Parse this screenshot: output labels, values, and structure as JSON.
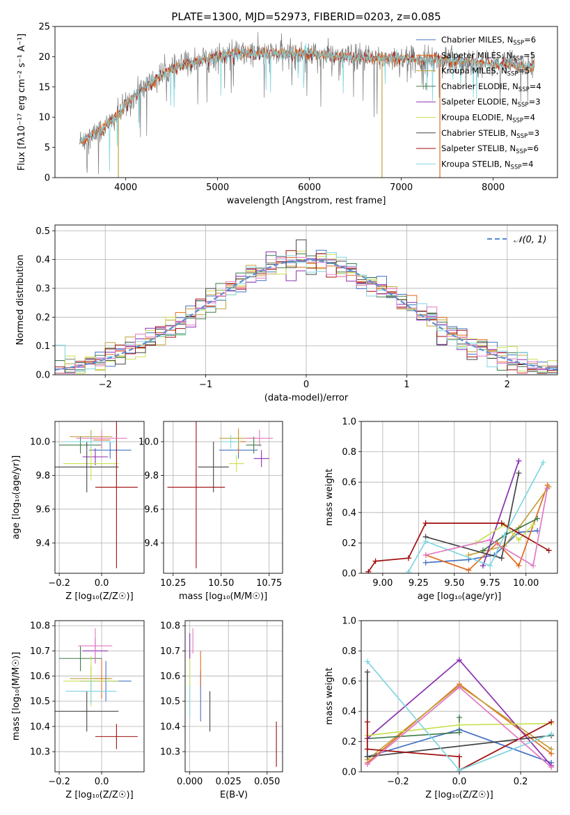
{
  "colors": {
    "Chabrier MILES": "#4472c4",
    "Salpeter MILES": "#e06b1f",
    "Kroupa MILES": "#c1a23a",
    "Chabrier ELODIE": "#3e7a48",
    "Salpeter ELODIE": "#8b2fb0",
    "Kroupa ELODIE": "#c9e053",
    "Chabrier STELIB": "#444444",
    "Salpeter STELIB": "#a00f0f",
    "Kroupa STELIB": "#7fd6e0",
    "extra_pink": "#e377c2",
    "normal": "#5b8fd6"
  },
  "chart_data": [
    {
      "id": "spectrum",
      "type": "line",
      "title": "PLATE=1300, MJD=52973, FIBERID=0203, z=0.085",
      "xlabel": "wavelength [Angstrom, rest frame]",
      "ylabel": "Flux [fλ10⁻¹⁷ erg cm⁻² s⁻¹ A⁻¹]",
      "xlim": [
        3230,
        8700
      ],
      "ylim": [
        0,
        25
      ],
      "xticks": [
        4000,
        5000,
        6000,
        7000,
        8000
      ],
      "yticks": [
        0,
        5,
        10,
        15,
        20,
        25
      ],
      "legend_position": "right",
      "continuum": [
        [
          3500,
          6
        ],
        [
          3700,
          7.5
        ],
        [
          3900,
          10
        ],
        [
          4000,
          12
        ],
        [
          4200,
          15
        ],
        [
          4400,
          17
        ],
        [
          4600,
          18.5
        ],
        [
          4800,
          19.5
        ],
        [
          5000,
          20
        ],
        [
          5200,
          20.5
        ],
        [
          5500,
          20.5
        ],
        [
          5800,
          20.5
        ],
        [
          6000,
          20.5
        ],
        [
          6300,
          20
        ],
        [
          6600,
          19.8
        ],
        [
          7000,
          19.7
        ],
        [
          7300,
          19.6
        ],
        [
          7600,
          19.3
        ],
        [
          8000,
          18.8
        ],
        [
          8450,
          18.4
        ]
      ],
      "dropouts": [
        {
          "x": 3920,
          "y": 0
        },
        {
          "x": 6790,
          "y": 0
        },
        {
          "x": 7420,
          "y": 0
        }
      ],
      "legend": [
        {
          "label": "Chabrier MILES, N",
          "sub": "SSP",
          "value": "=6",
          "series": "Chabrier MILES"
        },
        {
          "label": "Salpeter MILES, N",
          "sub": "SSP",
          "value": "=5",
          "series": "Salpeter MILES"
        },
        {
          "label": "Kroupa MILES, N",
          "sub": "SSP",
          "value": "=5",
          "series": "Kroupa MILES"
        },
        {
          "label": "Chabrier ELODIE, N",
          "sub": "SSP",
          "value": "=4",
          "series": "Chabrier ELODIE"
        },
        {
          "label": "Salpeter ELODIE, N",
          "sub": "SSP",
          "value": "=3",
          "series": "Salpeter ELODIE"
        },
        {
          "label": "Kroupa ELODIE, N",
          "sub": "SSP",
          "value": "=4",
          "series": "Kroupa ELODIE"
        },
        {
          "label": "Chabrier STELIB, N",
          "sub": "SSP",
          "value": "=3",
          "series": "Chabrier STELIB"
        },
        {
          "label": "Salpeter STELIB, N",
          "sub": "SSP",
          "value": "=6",
          "series": "Salpeter STELIB"
        },
        {
          "label": "Kroupa STELIB, N",
          "sub": "SSP",
          "value": "=4",
          "series": "Kroupa STELIB"
        }
      ]
    },
    {
      "id": "residuals",
      "type": "line",
      "xlabel": "(data-model)/error",
      "ylabel": "Normed distribution",
      "xlim": [
        -2.5,
        2.5
      ],
      "ylim": [
        0,
        0.52
      ],
      "xticks": [
        -2,
        -1,
        0,
        1,
        2
      ],
      "yticks": [
        0.0,
        0.1,
        0.2,
        0.3,
        0.4,
        0.5
      ],
      "grid": true,
      "legend": [
        {
          "label": "𝒩(0, 1)",
          "series": "normal"
        }
      ],
      "legend_position": "top-right",
      "bin_width": 0.1,
      "bin_start": -2.5
    },
    {
      "id": "age_vs_Z",
      "type": "scatter",
      "xlabel": "Z [log₁₀(Z/Z☉)]",
      "ylabel": "age  [log₁₀(age/yr)]",
      "xlim": [
        -0.22,
        0.2
      ],
      "ylim": [
        9.22,
        10.12
      ],
      "xticks": [
        -0.2,
        0.0
      ],
      "yticks": [
        9.4,
        9.6,
        9.8,
        10.0
      ],
      "grid": true,
      "points": [
        {
          "series": "Chabrier MILES",
          "x": 0.04,
          "y": 9.95,
          "xerr": 0.1,
          "yerr": 0.05
        },
        {
          "series": "Salpeter MILES",
          "x": 0.0,
          "y": 10.01,
          "xerr": 0.04,
          "yerr": 0.05
        },
        {
          "series": "Kroupa MILES",
          "x": -0.05,
          "y": 10.03,
          "xerr": 0.1,
          "yerr": 0.04
        },
        {
          "series": "Chabrier ELODIE",
          "x": -0.1,
          "y": 9.98,
          "xerr": 0.1,
          "yerr": 0.05
        },
        {
          "series": "Salpeter ELODIE",
          "x": -0.03,
          "y": 9.91,
          "xerr": 0.06,
          "yerr": 0.05
        },
        {
          "series": "Kroupa ELODIE",
          "x": -0.05,
          "y": 9.87,
          "xerr": 0.13,
          "yerr": 0.1
        },
        {
          "series": "Chabrier STELIB",
          "x": -0.07,
          "y": 9.85,
          "xerr": 0.15,
          "yerr": 0.15
        },
        {
          "series": "Salpeter STELIB",
          "x": 0.07,
          "y": 9.73,
          "xerr": 0.1,
          "yerr": 0.48
        },
        {
          "series": "Kroupa STELIB",
          "x": -0.05,
          "y": 10.0,
          "xerr": 0.12,
          "yerr": 0.04
        },
        {
          "series": "extra_pink",
          "x": 0.0,
          "y": 10.02,
          "xerr": 0.12,
          "yerr": 0.05
        }
      ]
    },
    {
      "id": "age_vs_mass",
      "type": "scatter",
      "xlabel": "mass [log₁₀(M/M☉)]",
      "ylabel": "",
      "xlim": [
        10.2,
        10.82
      ],
      "ylim": [
        9.22,
        10.12
      ],
      "xticks": [
        10.25,
        10.5,
        10.75
      ],
      "yticks": [
        9.4,
        9.6,
        9.8,
        10.0
      ],
      "grid": true,
      "points": [
        {
          "series": "Chabrier MILES",
          "x": 10.59,
          "y": 9.95,
          "xerr": 0.1,
          "yerr": 0.05
        },
        {
          "series": "Salpeter MILES",
          "x": 10.59,
          "y": 10.0,
          "xerr": 0.04,
          "yerr": 0.07
        },
        {
          "series": "Kroupa MILES",
          "x": 10.59,
          "y": 10.02,
          "xerr": 0.1,
          "yerr": 0.06
        },
        {
          "series": "Chabrier ELODIE",
          "x": 10.67,
          "y": 9.98,
          "xerr": 0.04,
          "yerr": 0.05
        },
        {
          "series": "Salpeter ELODIE",
          "x": 10.71,
          "y": 9.9,
          "xerr": 0.04,
          "yerr": 0.05
        },
        {
          "series": "Kroupa ELODIE",
          "x": 10.58,
          "y": 9.87,
          "xerr": 0.04,
          "yerr": 0.05
        },
        {
          "series": "Chabrier STELIB",
          "x": 10.46,
          "y": 9.85,
          "xerr": 0.08,
          "yerr": 0.15
        },
        {
          "series": "Salpeter STELIB",
          "x": 10.37,
          "y": 9.73,
          "xerr": 0.15,
          "yerr": 0.48
        },
        {
          "series": "Kroupa STELIB",
          "x": 10.55,
          "y": 10.0,
          "xerr": 0.05,
          "yerr": 0.04
        },
        {
          "series": "extra_pink",
          "x": 10.7,
          "y": 10.02,
          "xerr": 0.07,
          "yerr": 0.05
        }
      ]
    },
    {
      "id": "weight_vs_age",
      "type": "line",
      "xlabel": "age  [log₁₀(age/yr)]",
      "ylabel": "mass weight",
      "xlim": [
        8.85,
        10.22
      ],
      "ylim": [
        0,
        1.0
      ],
      "xticks": [
        9.0,
        9.25,
        9.5,
        9.75,
        10.0
      ],
      "yticks": [
        0.0,
        0.2,
        0.4,
        0.6,
        0.8,
        1.0
      ],
      "grid": true,
      "series": [
        {
          "name": "Chabrier MILES",
          "x": [
            9.3,
            9.6,
            9.78,
            9.95,
            10.08
          ],
          "y": [
            0.07,
            0.09,
            0.12,
            0.27,
            0.28
          ]
        },
        {
          "name": "Salpeter MILES",
          "x": [
            9.3,
            9.6,
            9.8,
            9.95,
            10.15
          ],
          "y": [
            0.12,
            0.02,
            0.2,
            0.05,
            0.58
          ]
        },
        {
          "name": "Kroupa MILES",
          "x": [
            9.6,
            9.85,
            9.95,
            10.16
          ],
          "y": [
            0.12,
            0.18,
            0.3,
            0.57
          ]
        },
        {
          "name": "Chabrier ELODIE",
          "x": [
            9.7,
            9.85,
            10.08
          ],
          "y": [
            0.15,
            0.25,
            0.36
          ]
        },
        {
          "name": "Salpeter ELODIE",
          "x": [
            9.7,
            9.95
          ],
          "y": [
            0.05,
            0.74
          ]
        },
        {
          "name": "Kroupa ELODIE",
          "x": [
            9.65,
            9.85,
            9.95,
            10.05
          ],
          "y": [
            0.2,
            0.32,
            0.22,
            0.32
          ]
        },
        {
          "name": "Chabrier STELIB",
          "x": [
            9.3,
            9.83,
            9.95
          ],
          "y": [
            0.24,
            0.1,
            0.66
          ]
        },
        {
          "name": "Salpeter STELIB",
          "x": [
            8.9,
            8.95,
            9.18,
            9.3,
            9.83,
            10.16
          ],
          "y": [
            0.01,
            0.08,
            0.1,
            0.33,
            0.33,
            0.15
          ]
        },
        {
          "name": "Kroupa STELIB",
          "x": [
            9.18,
            9.3,
            9.75,
            9.85,
            10.12
          ],
          "y": [
            0.01,
            0.21,
            0.05,
            0.25,
            0.73
          ]
        },
        {
          "name": "extra_pink",
          "x": [
            9.3,
            9.75,
            10.05,
            10.15
          ],
          "y": [
            0.12,
            0.22,
            0.05,
            0.56
          ]
        }
      ]
    },
    {
      "id": "mass_vs_Z",
      "type": "scatter",
      "xlabel": "Z [log₁₀(Z/Z☉)]",
      "ylabel": "mass [log₁₀(M/M☉)]",
      "xlim": [
        -0.22,
        0.2
      ],
      "ylim": [
        10.22,
        10.82
      ],
      "xticks": [
        -0.2,
        0.0
      ],
      "yticks": [
        10.3,
        10.4,
        10.5,
        10.6,
        10.7,
        10.8
      ],
      "grid": true,
      "points": [
        {
          "series": "Chabrier MILES",
          "x": 0.02,
          "y": 10.58,
          "xerr": 0.12,
          "yerr": 0.08
        },
        {
          "series": "Salpeter MILES",
          "x": 0.0,
          "y": 10.59,
          "xerr": 0.04,
          "yerr": 0.08
        },
        {
          "series": "Kroupa MILES",
          "x": -0.05,
          "y": 10.59,
          "xerr": 0.1,
          "yerr": 0.05
        },
        {
          "series": "Chabrier ELODIE",
          "x": -0.1,
          "y": 10.67,
          "xerr": 0.1,
          "yerr": 0.05
        },
        {
          "series": "Salpeter ELODIE",
          "x": -0.03,
          "y": 10.7,
          "xerr": 0.06,
          "yerr": 0.05
        },
        {
          "series": "Kroupa ELODIE",
          "x": -0.05,
          "y": 10.58,
          "xerr": 0.13,
          "yerr": 0.1
        },
        {
          "series": "Chabrier STELIB",
          "x": -0.07,
          "y": 10.46,
          "xerr": 0.15,
          "yerr": 0.08
        },
        {
          "series": "Salpeter STELIB",
          "x": 0.07,
          "y": 10.36,
          "xerr": 0.1,
          "yerr": 0.05
        },
        {
          "series": "Kroupa STELIB",
          "x": -0.05,
          "y": 10.54,
          "xerr": 0.12,
          "yerr": 0.05
        },
        {
          "series": "extra_pink",
          "x": -0.03,
          "y": 10.72,
          "xerr": 0.08,
          "yerr": 0.07
        }
      ]
    },
    {
      "id": "mass_vs_ebv",
      "type": "scatter",
      "xlabel": "E(B-V)",
      "ylabel": "",
      "xlim": [
        -0.003,
        0.06
      ],
      "ylim": [
        10.22,
        10.82
      ],
      "xticks": [
        0.0,
        0.025,
        0.05
      ],
      "yticks": [
        10.3,
        10.4,
        10.5,
        10.6,
        10.7,
        10.8
      ],
      "grid": true,
      "points": [
        {
          "series": "Chabrier MILES",
          "x": 0.007,
          "y": 10.52,
          "xerr": 0,
          "yerr": 0.1
        },
        {
          "series": "Salpeter MILES",
          "x": 0.007,
          "y": 10.63,
          "xerr": 0,
          "yerr": 0.07
        },
        {
          "series": "Kroupa ELODIE",
          "x": 0.0,
          "y": 10.62,
          "xerr": 0,
          "yerr": 0.07
        },
        {
          "series": "Salpeter ELODIE",
          "x": 0.0,
          "y": 10.72,
          "xerr": 0,
          "yerr": 0.05
        },
        {
          "series": "extra_pink",
          "x": 0.002,
          "y": 10.74,
          "xerr": 0,
          "yerr": 0.05
        },
        {
          "series": "Kroupa STELIB",
          "x": 0.0,
          "y": 10.5,
          "xerr": 0,
          "yerr": 0.06
        },
        {
          "series": "Chabrier STELIB",
          "x": 0.013,
          "y": 10.46,
          "xerr": 0,
          "yerr": 0.08
        },
        {
          "series": "Salpeter STELIB",
          "x": 0.056,
          "y": 10.33,
          "xerr": 0,
          "yerr": 0.09
        }
      ]
    },
    {
      "id": "weight_vs_Z",
      "type": "line",
      "xlabel": "Z [log₁₀(Z/Z☉)]",
      "ylabel": "mass weight",
      "xlim": [
        -0.32,
        0.32
      ],
      "ylim": [
        0,
        1.0
      ],
      "xticks": [
        -0.2,
        0.0,
        0.2
      ],
      "yticks": [
        0.0,
        0.2,
        0.4,
        0.6,
        0.8,
        1.0
      ],
      "grid": true,
      "series": [
        {
          "name": "Chabrier MILES",
          "x": [
            -0.3,
            0.0,
            0.3
          ],
          "y": [
            0.1,
            0.28,
            0.06
          ]
        },
        {
          "name": "Salpeter MILES",
          "x": [
            -0.3,
            0.0,
            0.3
          ],
          "y": [
            0.06,
            0.58,
            0.12
          ]
        },
        {
          "name": "Kroupa MILES",
          "x": [
            -0.3,
            0.0,
            0.3
          ],
          "y": [
            0.08,
            0.57,
            0.15
          ]
        },
        {
          "name": "Chabrier ELODIE",
          "x": [
            -0.3,
            0.0,
            0.0
          ],
          "y": [
            0.22,
            0.26,
            0.36
          ]
        },
        {
          "name": "Salpeter ELODIE",
          "x": [
            -0.3,
            0.0,
            0.3
          ],
          "y": [
            0.22,
            0.74,
            0.04
          ]
        },
        {
          "name": "Kroupa ELODIE",
          "x": [
            -0.3,
            0.0,
            0.3
          ],
          "y": [
            0.24,
            0.31,
            0.32
          ]
        },
        {
          "name": "Chabrier STELIB",
          "x": [
            -0.3,
            -0.3,
            0.3
          ],
          "y": [
            0.66,
            0.1,
            0.24
          ]
        },
        {
          "name": "Salpeter STELIB",
          "x": [
            -0.3,
            -0.3,
            0.0,
            0.0,
            0.3
          ],
          "y": [
            0.33,
            0.15,
            0.1,
            0.01,
            0.33
          ]
        },
        {
          "name": "Kroupa STELIB",
          "x": [
            -0.3,
            0.0,
            0.3
          ],
          "y": [
            0.73,
            0.01,
            0.25
          ]
        },
        {
          "name": "extra_pink",
          "x": [
            -0.3,
            0.0,
            0.3
          ],
          "y": [
            0.05,
            0.56,
            0.03
          ]
        }
      ]
    }
  ]
}
